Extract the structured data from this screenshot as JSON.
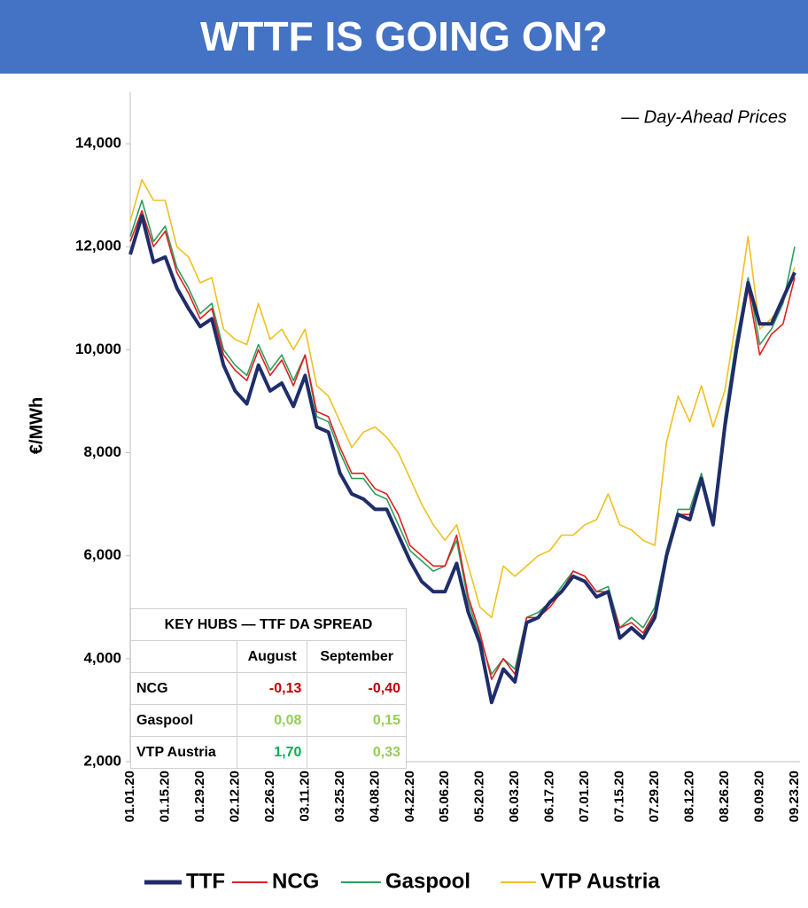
{
  "chart_data": {
    "type": "line",
    "title": "WTTF IS GOING ON?",
    "annotation": "— Day-Ahead Prices",
    "y_label": "€/MWh",
    "categories": [
      "01.01.20",
      null,
      null,
      "01.15.20",
      null,
      null,
      "01.29.20",
      null,
      null,
      "02.12.20",
      null,
      null,
      "02.26.20",
      null,
      null,
      "03.11.20",
      null,
      null,
      "03.25.20",
      null,
      null,
      "04.08.20",
      null,
      null,
      "04.22.20",
      null,
      null,
      "05.06.20",
      null,
      null,
      "05.20.20",
      null,
      null,
      "06.03.20",
      null,
      null,
      "06.17.20",
      null,
      null,
      "07.01.20",
      null,
      null,
      "07.15.20",
      null,
      null,
      "07.29.20",
      null,
      null,
      "08.12.20",
      null,
      null,
      "08.26.20",
      null,
      null,
      "09.09.20",
      null,
      null,
      "09.23.20"
    ],
    "series": [
      {
        "name": "TTF",
        "color": "#1f2d6b",
        "values": [
          11850,
          12600,
          11700,
          11800,
          11200,
          10800,
          10450,
          10600,
          9700,
          9200,
          8950,
          9700,
          9200,
          9350,
          8900,
          9500,
          8500,
          8400,
          7600,
          7200,
          7100,
          6900,
          6900,
          6400,
          5900,
          5500,
          5300,
          5300,
          5850,
          4900,
          4300,
          3150,
          3800,
          3550,
          4700,
          4800,
          5100,
          5300,
          5600,
          5500,
          5200,
          5300,
          4400,
          4600,
          4400,
          4800,
          6000,
          6800,
          6700,
          7500,
          6600,
          8500,
          10000,
          11300,
          10500,
          10500,
          11000,
          11500
        ]
      },
      {
        "name": "NCG",
        "color": "#e02020",
        "values": [
          12100,
          12700,
          12000,
          12300,
          11500,
          11100,
          10600,
          10800,
          9900,
          9600,
          9400,
          10000,
          9500,
          9800,
          9300,
          9900,
          8800,
          8700,
          8100,
          7600,
          7600,
          7300,
          7200,
          6800,
          6200,
          6000,
          5800,
          5800,
          6400,
          5200,
          4500,
          3600,
          4000,
          3700,
          4800,
          4800,
          5000,
          5300,
          5700,
          5600,
          5300,
          5300,
          4600,
          4700,
          4500,
          4900,
          6000,
          6800,
          6800,
          7500,
          6600,
          8600,
          10000,
          11200,
          9900,
          10300,
          10500,
          11400
        ]
      },
      {
        "name": "Gaspool",
        "color": "#2e9e5b",
        "values": [
          12200,
          12900,
          12100,
          12400,
          11600,
          11200,
          10700,
          10900,
          10000,
          9700,
          9500,
          10100,
          9600,
          9900,
          9400,
          9900,
          8700,
          8600,
          8000,
          7500,
          7500,
          7200,
          7100,
          6600,
          6100,
          5900,
          5700,
          5800,
          6300,
          5100,
          4400,
          3700,
          4000,
          3800,
          4800,
          4900,
          5100,
          5400,
          5700,
          5600,
          5300,
          5400,
          4600,
          4800,
          4600,
          5000,
          6100,
          6900,
          6900,
          7600,
          6700,
          8700,
          10200,
          11400,
          10100,
          10400,
          10900,
          12000
        ]
      },
      {
        "name": "VTP Austria",
        "color": "#f0c020",
        "values": [
          12500,
          13300,
          12900,
          12900,
          12000,
          11800,
          11300,
          11400,
          10400,
          10200,
          10100,
          10900,
          10200,
          10400,
          10000,
          10400,
          9300,
          9100,
          8600,
          8100,
          8400,
          8500,
          8300,
          8000,
          7500,
          7000,
          6600,
          6300,
          6600,
          5800,
          5000,
          4800,
          5800,
          5600,
          5800,
          6000,
          6100,
          6400,
          6400,
          6600,
          6700,
          7200,
          6600,
          6500,
          6300,
          6200,
          8200,
          9100,
          8600,
          9300,
          8500,
          9200,
          10600,
          12200,
          10400,
          10600,
          10900,
          11600
        ]
      }
    ],
    "ylim": [
      2000,
      15000
    ],
    "yticks": [
      {
        "value": 2000,
        "label": "2,000"
      },
      {
        "value": 4000,
        "label": "4,000"
      },
      {
        "value": 6000,
        "label": "6,000"
      },
      {
        "value": 8000,
        "label": "8,000"
      },
      {
        "value": 10000,
        "label": "10,000"
      },
      {
        "value": 12000,
        "label": "12,000"
      },
      {
        "value": 14000,
        "label": "14,000"
      }
    ],
    "grid": false,
    "legend": "bottom"
  },
  "table": {
    "title": "KEY HUBS — TTF DA SPREAD",
    "columns": [
      "August",
      "September"
    ],
    "rows": [
      [
        "NCG",
        "-0,13",
        "-0,40"
      ],
      [
        "Gaspool",
        "0,08",
        "0,15"
      ],
      [
        "VTP Austria",
        "1,70",
        "0,33"
      ]
    ],
    "value_colors": [
      [
        "#c00000",
        "#c00000"
      ],
      [
        "#92d050",
        "#92d050"
      ],
      [
        "#00b050",
        "#92d050"
      ]
    ]
  }
}
